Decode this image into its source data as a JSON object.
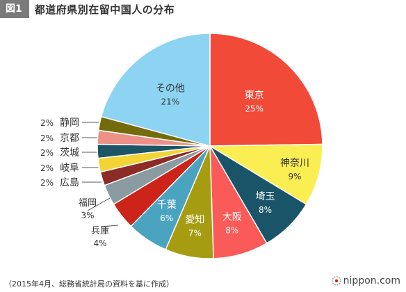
{
  "header": {
    "figure_label": "図1",
    "title": "都道府県別在留中国人の分布"
  },
  "chart_data": {
    "type": "pie",
    "title": "都道府県別在留中国人の分布",
    "start_angle_deg": 0,
    "direction": "clockwise",
    "slices": [
      {
        "label": "東京",
        "value_label": "25%",
        "value": 25,
        "color": "#f24a39",
        "label_color": "#ffffff"
      },
      {
        "label": "神奈川",
        "value_label": "9%",
        "value": 9,
        "color": "#fbee52",
        "label_color": "#333333"
      },
      {
        "label": "埼玉",
        "value_label": "8%",
        "value": 8,
        "color": "#1a5468",
        "label_color": "#ffffff"
      },
      {
        "label": "大阪",
        "value_label": "8%",
        "value": 8,
        "color": "#fa5a58",
        "label_color": "#ffffff"
      },
      {
        "label": "愛知",
        "value_label": "7%",
        "value": 7,
        "color": "#a69c12",
        "label_color": "#ffffff"
      },
      {
        "label": "千葉",
        "value_label": "6%",
        "value": 6,
        "color": "#4aa3bf",
        "label_color": "#ffffff"
      },
      {
        "label": "兵庫",
        "value_label": "4%",
        "value": 4,
        "color": "#cc2419",
        "label_color": "#333333"
      },
      {
        "label": "福岡",
        "value_label": "3%",
        "value": 3,
        "color": "#8a9ba1",
        "label_color": "#333333"
      },
      {
        "label": "広島",
        "value_label": "2%",
        "value": 2,
        "color": "#8d2b27",
        "label_color": "#333333"
      },
      {
        "label": "岐阜",
        "value_label": "2%",
        "value": 2,
        "color": "#f2d434",
        "label_color": "#333333"
      },
      {
        "label": "茨城",
        "value_label": "2%",
        "value": 2,
        "color": "#1c5566",
        "label_color": "#333333"
      },
      {
        "label": "京都",
        "value_label": "2%",
        "value": 2,
        "color": "#ec9088",
        "label_color": "#333333"
      },
      {
        "label": "静岡",
        "value_label": "2%",
        "value": 2,
        "color": "#746b0c",
        "label_color": "#333333"
      },
      {
        "label": "その他",
        "value_label": "21%",
        "value": 21,
        "color": "#8dd3f2",
        "label_color": "#333333"
      }
    ]
  },
  "footer": {
    "source": "（2015年4月、総務省統計局の資料を基に作成）",
    "logo_text": "nippon.com"
  }
}
